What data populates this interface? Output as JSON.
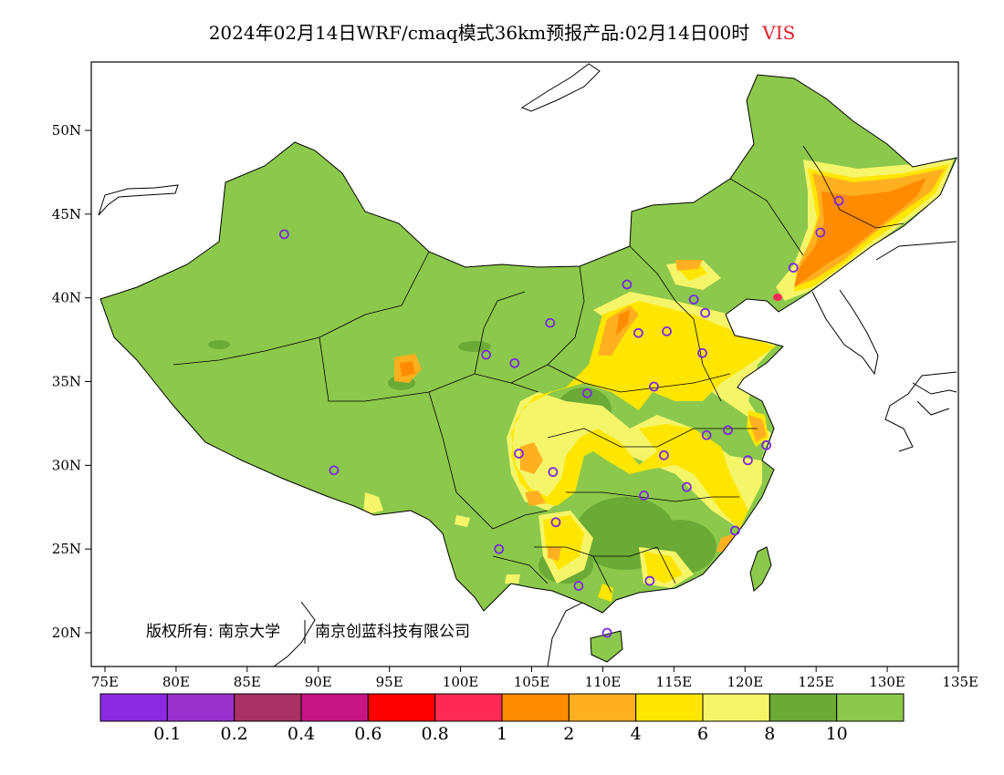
{
  "title": {
    "text": "2024年02月14日WRF/cmaq模式36km预报产品:02月14日00时",
    "variable": "VIS"
  },
  "axes": {
    "lat_labels": [
      "50N",
      "45N",
      "40N",
      "35N",
      "30N",
      "25N",
      "20N"
    ],
    "lat_values": [
      50,
      45,
      40,
      35,
      30,
      25,
      20
    ],
    "lon_labels": [
      "75E",
      "80E",
      "85E",
      "90E",
      "95E",
      "100E",
      "105E",
      "110E",
      "115E",
      "120E",
      "125E",
      "130E",
      "135E"
    ],
    "lon_values": [
      75,
      80,
      85,
      90,
      95,
      100,
      105,
      110,
      115,
      120,
      125,
      130,
      135
    ]
  },
  "copyright": {
    "text": "版权所有: 南京大学",
    "text2": "南京创蓝科技有限公司"
  },
  "colorbar": {
    "colors": [
      "#8a2be2",
      "#9932cc",
      "#a83262",
      "#c71585",
      "#ff0000",
      "#ff2a55",
      "#ff8c00",
      "#ffb020",
      "#ffe600",
      "#f5f56a",
      "#6aaa35",
      "#8cc84b"
    ],
    "labels": [
      "0.1",
      "0.2",
      "0.4",
      "0.6",
      "0.8",
      "1",
      "2",
      "4",
      "6",
      "8",
      "10"
    ]
  },
  "palette": {
    "land_base": "#8cc84b",
    "land_dark": "#6aaa35",
    "yellow_light": "#f5f56a",
    "yellow": "#ffe600",
    "orange_light": "#ffb020",
    "orange": "#ff8c00",
    "red": "#ff2a55",
    "station": "#7a2be2"
  },
  "stations": [
    [
      87.6,
      43.8
    ],
    [
      91.1,
      29.7
    ],
    [
      101.8,
      36.6
    ],
    [
      103.8,
      36.1
    ],
    [
      106.3,
      38.5
    ],
    [
      104.1,
      30.7
    ],
    [
      106.5,
      29.6
    ],
    [
      106.7,
      26.6
    ],
    [
      102.7,
      25.0
    ],
    [
      108.3,
      22.8
    ],
    [
      111.7,
      40.8
    ],
    [
      112.5,
      37.9
    ],
    [
      114.5,
      38.0
    ],
    [
      116.4,
      39.9
    ],
    [
      117.2,
      39.1
    ],
    [
      117.0,
      36.7
    ],
    [
      113.6,
      34.7
    ],
    [
      108.9,
      34.3
    ],
    [
      114.3,
      30.6
    ],
    [
      112.9,
      28.2
    ],
    [
      115.9,
      28.7
    ],
    [
      117.3,
      31.8
    ],
    [
      118.8,
      32.1
    ],
    [
      120.2,
      30.3
    ],
    [
      121.5,
      31.2
    ],
    [
      119.3,
      26.1
    ],
    [
      113.3,
      23.1
    ],
    [
      110.3,
      20.0
    ],
    [
      123.4,
      41.8
    ],
    [
      125.3,
      43.9
    ],
    [
      126.6,
      45.8
    ]
  ]
}
